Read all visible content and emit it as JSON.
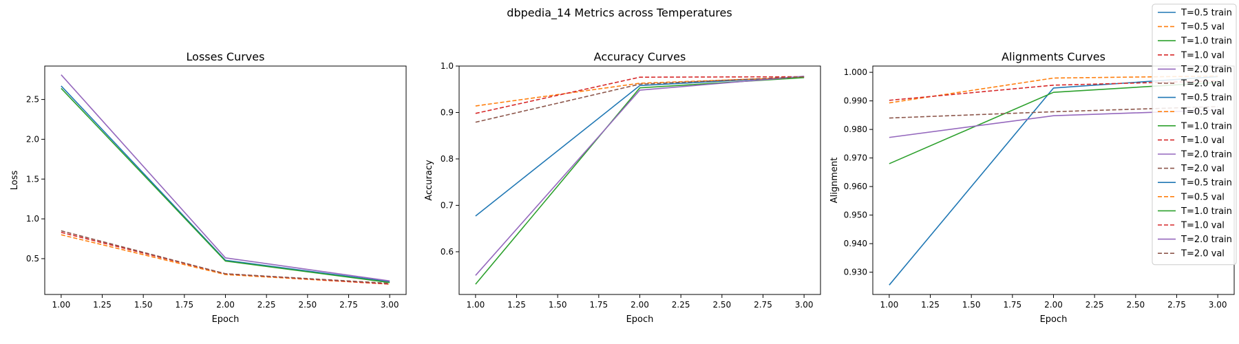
{
  "figure": {
    "suptitle": "dbpedia_14 Metrics across Temperatures"
  },
  "series_colors": {
    "T=0.5 train": "#1f77b4",
    "T=0.5 val": "#ff7f0e",
    "T=1.0 train": "#2ca02c",
    "T=1.0 val": "#d62728",
    "T=2.0 train": "#9467bd",
    "T=2.0 val": "#8c564b"
  },
  "chart_data": [
    {
      "type": "line",
      "title": "Losses Curves",
      "xlabel": "Epoch",
      "ylabel": "Loss",
      "xlim": [
        0.9,
        3.1
      ],
      "ylim": [
        0.05,
        2.92
      ],
      "xticks": [
        "1.00",
        "1.25",
        "1.50",
        "1.75",
        "2.00",
        "2.25",
        "2.50",
        "2.75",
        "3.00"
      ],
      "yticks": [
        "0.5",
        "1.0",
        "1.5",
        "2.0",
        "2.5"
      ],
      "x": [
        1,
        2,
        3
      ],
      "series": [
        {
          "name": "T=0.5 train",
          "style": "solid",
          "values": [
            2.67,
            0.48,
            0.21
          ]
        },
        {
          "name": "T=0.5 val",
          "style": "dashed",
          "values": [
            0.8,
            0.3,
            0.18
          ]
        },
        {
          "name": "T=1.0 train",
          "style": "solid",
          "values": [
            2.64,
            0.47,
            0.2
          ]
        },
        {
          "name": "T=1.0 val",
          "style": "dashed",
          "values": [
            0.83,
            0.31,
            0.18
          ]
        },
        {
          "name": "T=2.0 train",
          "style": "solid",
          "values": [
            2.81,
            0.51,
            0.22
          ]
        },
        {
          "name": "T=2.0 val",
          "style": "dashed",
          "values": [
            0.85,
            0.31,
            0.19
          ]
        }
      ]
    },
    {
      "type": "line",
      "title": "Accuracy Curves",
      "xlabel": "Epoch",
      "ylabel": "Accuracy",
      "xlim": [
        0.9,
        3.1
      ],
      "ylim": [
        0.508,
        1.0
      ],
      "xticks": [
        "1.00",
        "1.25",
        "1.50",
        "1.75",
        "2.00",
        "2.25",
        "2.50",
        "2.75",
        "3.00"
      ],
      "yticks": [
        "0.6",
        "0.7",
        "0.8",
        "0.9",
        "1.0"
      ],
      "x": [
        1,
        2,
        3
      ],
      "series": [
        {
          "name": "T=0.5 train",
          "style": "solid",
          "values": [
            0.677,
            0.958,
            0.977
          ]
        },
        {
          "name": "T=0.5 val",
          "style": "dashed",
          "values": [
            0.914,
            0.963,
            0.976
          ]
        },
        {
          "name": "T=1.0 train",
          "style": "solid",
          "values": [
            0.53,
            0.953,
            0.975
          ]
        },
        {
          "name": "T=1.0 val",
          "style": "dashed",
          "values": [
            0.898,
            0.976,
            0.977
          ]
        },
        {
          "name": "T=2.0 train",
          "style": "solid",
          "values": [
            0.549,
            0.948,
            0.978
          ]
        },
        {
          "name": "T=2.0 val",
          "style": "dashed",
          "values": [
            0.879,
            0.961,
            0.977
          ]
        }
      ]
    },
    {
      "type": "line",
      "title": "Alignments Curves",
      "xlabel": "Epoch",
      "ylabel": "Alignment",
      "xlim": [
        0.9,
        3.1
      ],
      "ylim": [
        0.9222,
        1.0022
      ],
      "xticks": [
        "1.00",
        "1.25",
        "1.50",
        "1.75",
        "2.00",
        "2.25",
        "2.50",
        "2.75",
        "3.00"
      ],
      "yticks": [
        "0.930",
        "0.940",
        "0.950",
        "0.960",
        "0.970",
        "0.980",
        "0.990",
        "1.000"
      ],
      "x": [
        1,
        2,
        3
      ],
      "series": [
        {
          "name": "T=0.5 train",
          "style": "solid",
          "values": [
            0.9255,
            0.9945,
            0.9985
          ]
        },
        {
          "name": "T=0.5 val",
          "style": "dashed",
          "values": [
            0.9893,
            0.998,
            0.9987
          ]
        },
        {
          "name": "T=1.0 train",
          "style": "solid",
          "values": [
            0.968,
            0.993,
            0.9965
          ]
        },
        {
          "name": "T=1.0 val",
          "style": "dashed",
          "values": [
            0.9902,
            0.9955,
            0.997
          ]
        },
        {
          "name": "T=2.0 train",
          "style": "solid",
          "values": [
            0.9772,
            0.9848,
            0.9868
          ]
        },
        {
          "name": "T=2.0 val",
          "style": "dashed",
          "values": [
            0.984,
            0.9862,
            0.988
          ]
        }
      ]
    }
  ],
  "legend": {
    "placement": "top-right",
    "entries": [
      {
        "label": "T=0.5 train",
        "style": "solid"
      },
      {
        "label": "T=0.5 val",
        "style": "dashed"
      },
      {
        "label": "T=1.0 train",
        "style": "solid"
      },
      {
        "label": "T=1.0 val",
        "style": "dashed"
      },
      {
        "label": "T=2.0 train",
        "style": "solid"
      },
      {
        "label": "T=2.0 val",
        "style": "dashed"
      },
      {
        "label": "T=0.5 train",
        "style": "solid"
      },
      {
        "label": "T=0.5 val",
        "style": "dashed"
      },
      {
        "label": "T=1.0 train",
        "style": "solid"
      },
      {
        "label": "T=1.0 val",
        "style": "dashed"
      },
      {
        "label": "T=2.0 train",
        "style": "solid"
      },
      {
        "label": "T=2.0 val",
        "style": "dashed"
      },
      {
        "label": "T=0.5 train",
        "style": "solid"
      },
      {
        "label": "T=0.5 val",
        "style": "dashed"
      },
      {
        "label": "T=1.0 train",
        "style": "solid"
      },
      {
        "label": "T=1.0 val",
        "style": "dashed"
      },
      {
        "label": "T=2.0 train",
        "style": "solid"
      },
      {
        "label": "T=2.0 val",
        "style": "dashed"
      }
    ]
  }
}
